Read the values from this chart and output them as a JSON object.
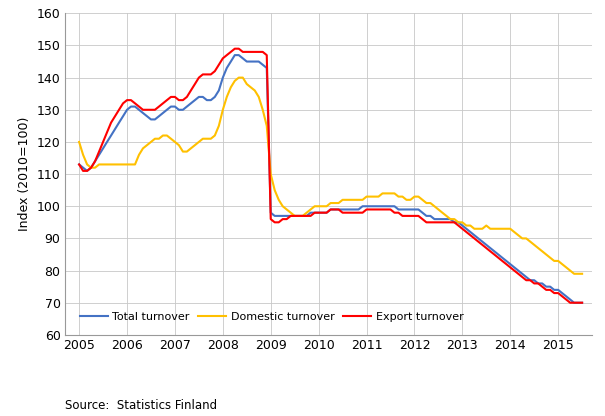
{
  "title": "",
  "ylabel": "Index (2010=100)",
  "source_text": "Source:  Statistics Finland",
  "ylim": [
    60,
    160
  ],
  "yticks": [
    60,
    70,
    80,
    90,
    100,
    110,
    120,
    130,
    140,
    150,
    160
  ],
  "xlim": [
    2004.7,
    2015.7
  ],
  "xticks": [
    2005,
    2006,
    2007,
    2008,
    2009,
    2010,
    2011,
    2012,
    2013,
    2014,
    2015
  ],
  "colors": {
    "total": "#4472C4",
    "domestic": "#FFC000",
    "export": "#FF0000"
  },
  "linewidth": 1.5,
  "legend_labels": [
    "Total turnover",
    "Domestic turnover",
    "Export turnover"
  ],
  "total_turnover": {
    "x": [
      2005.0,
      2005.083,
      2005.167,
      2005.25,
      2005.333,
      2005.417,
      2005.5,
      2005.583,
      2005.667,
      2005.75,
      2005.833,
      2005.917,
      2006.0,
      2006.083,
      2006.167,
      2006.25,
      2006.333,
      2006.417,
      2006.5,
      2006.583,
      2006.667,
      2006.75,
      2006.833,
      2006.917,
      2007.0,
      2007.083,
      2007.167,
      2007.25,
      2007.333,
      2007.417,
      2007.5,
      2007.583,
      2007.667,
      2007.75,
      2007.833,
      2007.917,
      2008.0,
      2008.083,
      2008.167,
      2008.25,
      2008.333,
      2008.417,
      2008.5,
      2008.583,
      2008.667,
      2008.75,
      2008.833,
      2008.917,
      2009.0,
      2009.083,
      2009.167,
      2009.25,
      2009.333,
      2009.417,
      2009.5,
      2009.583,
      2009.667,
      2009.75,
      2009.833,
      2009.917,
      2010.0,
      2010.083,
      2010.167,
      2010.25,
      2010.333,
      2010.417,
      2010.5,
      2010.583,
      2010.667,
      2010.75,
      2010.833,
      2010.917,
      2011.0,
      2011.083,
      2011.167,
      2011.25,
      2011.333,
      2011.417,
      2011.5,
      2011.583,
      2011.667,
      2011.75,
      2011.833,
      2011.917,
      2012.0,
      2012.083,
      2012.167,
      2012.25,
      2012.333,
      2012.417,
      2012.5,
      2012.583,
      2012.667,
      2012.75,
      2012.833,
      2012.917,
      2013.0,
      2013.083,
      2013.167,
      2013.25,
      2013.333,
      2013.417,
      2013.5,
      2013.583,
      2013.667,
      2013.75,
      2013.833,
      2013.917,
      2014.0,
      2014.083,
      2014.167,
      2014.25,
      2014.333,
      2014.417,
      2014.5,
      2014.583,
      2014.667,
      2014.75,
      2014.833,
      2014.917,
      2015.0,
      2015.083,
      2015.167,
      2015.25,
      2015.333,
      2015.417,
      2015.5
    ],
    "y": [
      113,
      112,
      111,
      112,
      114,
      116,
      118,
      120,
      122,
      124,
      126,
      128,
      130,
      131,
      131,
      130,
      129,
      128,
      127,
      127,
      128,
      129,
      130,
      131,
      131,
      130,
      130,
      131,
      132,
      133,
      134,
      134,
      133,
      133,
      134,
      136,
      140,
      143,
      145,
      147,
      147,
      146,
      145,
      145,
      145,
      145,
      144,
      143,
      98,
      97,
      97,
      97,
      97,
      97,
      97,
      97,
      97,
      97,
      98,
      98,
      98,
      98,
      98,
      99,
      99,
      99,
      99,
      99,
      99,
      99,
      99,
      100,
      100,
      100,
      100,
      100,
      100,
      100,
      100,
      100,
      99,
      99,
      99,
      99,
      99,
      99,
      98,
      97,
      97,
      96,
      96,
      96,
      96,
      96,
      95,
      95,
      94,
      93,
      92,
      91,
      90,
      89,
      88,
      87,
      86,
      85,
      84,
      83,
      82,
      81,
      80,
      79,
      78,
      77,
      77,
      76,
      76,
      75,
      75,
      74,
      74,
      73,
      72,
      71,
      70,
      70,
      70
    ]
  },
  "domestic_turnover": {
    "x": [
      2005.0,
      2005.083,
      2005.167,
      2005.25,
      2005.333,
      2005.417,
      2005.5,
      2005.583,
      2005.667,
      2005.75,
      2005.833,
      2005.917,
      2006.0,
      2006.083,
      2006.167,
      2006.25,
      2006.333,
      2006.417,
      2006.5,
      2006.583,
      2006.667,
      2006.75,
      2006.833,
      2006.917,
      2007.0,
      2007.083,
      2007.167,
      2007.25,
      2007.333,
      2007.417,
      2007.5,
      2007.583,
      2007.667,
      2007.75,
      2007.833,
      2007.917,
      2008.0,
      2008.083,
      2008.167,
      2008.25,
      2008.333,
      2008.417,
      2008.5,
      2008.583,
      2008.667,
      2008.75,
      2008.833,
      2008.917,
      2009.0,
      2009.083,
      2009.167,
      2009.25,
      2009.333,
      2009.417,
      2009.5,
      2009.583,
      2009.667,
      2009.75,
      2009.833,
      2009.917,
      2010.0,
      2010.083,
      2010.167,
      2010.25,
      2010.333,
      2010.417,
      2010.5,
      2010.583,
      2010.667,
      2010.75,
      2010.833,
      2010.917,
      2011.0,
      2011.083,
      2011.167,
      2011.25,
      2011.333,
      2011.417,
      2011.5,
      2011.583,
      2011.667,
      2011.75,
      2011.833,
      2011.917,
      2012.0,
      2012.083,
      2012.167,
      2012.25,
      2012.333,
      2012.417,
      2012.5,
      2012.583,
      2012.667,
      2012.75,
      2012.833,
      2012.917,
      2013.0,
      2013.083,
      2013.167,
      2013.25,
      2013.333,
      2013.417,
      2013.5,
      2013.583,
      2013.667,
      2013.75,
      2013.833,
      2013.917,
      2014.0,
      2014.083,
      2014.167,
      2014.25,
      2014.333,
      2014.417,
      2014.5,
      2014.583,
      2014.667,
      2014.75,
      2014.833,
      2014.917,
      2015.0,
      2015.083,
      2015.167,
      2015.25,
      2015.333,
      2015.417,
      2015.5
    ],
    "y": [
      120,
      116,
      113,
      112,
      112,
      113,
      113,
      113,
      113,
      113,
      113,
      113,
      113,
      113,
      113,
      116,
      118,
      119,
      120,
      121,
      121,
      122,
      122,
      121,
      120,
      119,
      117,
      117,
      118,
      119,
      120,
      121,
      121,
      121,
      122,
      125,
      130,
      134,
      137,
      139,
      140,
      140,
      138,
      137,
      136,
      134,
      130,
      125,
      110,
      105,
      102,
      100,
      99,
      98,
      97,
      97,
      97,
      98,
      99,
      100,
      100,
      100,
      100,
      101,
      101,
      101,
      102,
      102,
      102,
      102,
      102,
      102,
      103,
      103,
      103,
      103,
      104,
      104,
      104,
      104,
      103,
      103,
      102,
      102,
      103,
      103,
      102,
      101,
      101,
      100,
      99,
      98,
      97,
      96,
      96,
      95,
      95,
      94,
      94,
      93,
      93,
      93,
      94,
      93,
      93,
      93,
      93,
      93,
      93,
      92,
      91,
      90,
      90,
      89,
      88,
      87,
      86,
      85,
      84,
      83,
      83,
      82,
      81,
      80,
      79,
      79,
      79
    ]
  },
  "export_turnover": {
    "x": [
      2005.0,
      2005.083,
      2005.167,
      2005.25,
      2005.333,
      2005.417,
      2005.5,
      2005.583,
      2005.667,
      2005.75,
      2005.833,
      2005.917,
      2006.0,
      2006.083,
      2006.167,
      2006.25,
      2006.333,
      2006.417,
      2006.5,
      2006.583,
      2006.667,
      2006.75,
      2006.833,
      2006.917,
      2007.0,
      2007.083,
      2007.167,
      2007.25,
      2007.333,
      2007.417,
      2007.5,
      2007.583,
      2007.667,
      2007.75,
      2007.833,
      2007.917,
      2008.0,
      2008.083,
      2008.167,
      2008.25,
      2008.333,
      2008.417,
      2008.5,
      2008.583,
      2008.667,
      2008.75,
      2008.833,
      2008.917,
      2009.0,
      2009.083,
      2009.167,
      2009.25,
      2009.333,
      2009.417,
      2009.5,
      2009.583,
      2009.667,
      2009.75,
      2009.833,
      2009.917,
      2010.0,
      2010.083,
      2010.167,
      2010.25,
      2010.333,
      2010.417,
      2010.5,
      2010.583,
      2010.667,
      2010.75,
      2010.833,
      2010.917,
      2011.0,
      2011.083,
      2011.167,
      2011.25,
      2011.333,
      2011.417,
      2011.5,
      2011.583,
      2011.667,
      2011.75,
      2011.833,
      2011.917,
      2012.0,
      2012.083,
      2012.167,
      2012.25,
      2012.333,
      2012.417,
      2012.5,
      2012.583,
      2012.667,
      2012.75,
      2012.833,
      2012.917,
      2013.0,
      2013.083,
      2013.167,
      2013.25,
      2013.333,
      2013.417,
      2013.5,
      2013.583,
      2013.667,
      2013.75,
      2013.833,
      2013.917,
      2014.0,
      2014.083,
      2014.167,
      2014.25,
      2014.333,
      2014.417,
      2014.5,
      2014.583,
      2014.667,
      2014.75,
      2014.833,
      2014.917,
      2015.0,
      2015.083,
      2015.167,
      2015.25,
      2015.333,
      2015.417,
      2015.5
    ],
    "y": [
      113,
      111,
      111,
      112,
      114,
      117,
      120,
      123,
      126,
      128,
      130,
      132,
      133,
      133,
      132,
      131,
      130,
      130,
      130,
      130,
      131,
      132,
      133,
      134,
      134,
      133,
      133,
      134,
      136,
      138,
      140,
      141,
      141,
      141,
      142,
      144,
      146,
      147,
      148,
      149,
      149,
      148,
      148,
      148,
      148,
      148,
      148,
      147,
      96,
      95,
      95,
      96,
      96,
      97,
      97,
      97,
      97,
      97,
      97,
      98,
      98,
      98,
      98,
      99,
      99,
      99,
      98,
      98,
      98,
      98,
      98,
      98,
      99,
      99,
      99,
      99,
      99,
      99,
      99,
      98,
      98,
      97,
      97,
      97,
      97,
      97,
      96,
      95,
      95,
      95,
      95,
      95,
      95,
      95,
      95,
      94,
      93,
      92,
      91,
      90,
      89,
      88,
      87,
      86,
      85,
      84,
      83,
      82,
      81,
      80,
      79,
      78,
      77,
      77,
      76,
      76,
      75,
      74,
      74,
      73,
      73,
      72,
      71,
      70,
      70,
      70,
      70
    ]
  }
}
